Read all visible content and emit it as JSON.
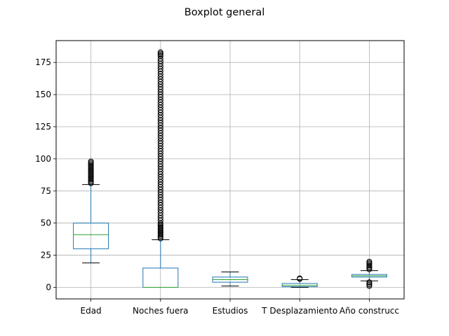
{
  "chart_data": {
    "type": "boxplot",
    "title": "Boxplot general",
    "xlabel": "",
    "ylabel": "",
    "ylim": [
      -9,
      192
    ],
    "yticks": [
      0,
      25,
      50,
      75,
      100,
      125,
      150,
      175
    ],
    "grid": true,
    "colors": {
      "box": "#1f77b4",
      "median": "#2ca02c",
      "whisker": "#000000",
      "flier": "#000000",
      "grid": "#b0b0b0"
    },
    "categories": [
      "Edad",
      "Noches fuera",
      "Estudios",
      "T Desplazamiento",
      "Año construcc"
    ],
    "boxes": [
      {
        "name": "Edad",
        "whislo": 19,
        "q1": 30,
        "med": 41,
        "q3": 50,
        "whishi": 80,
        "fliers": [
          81,
          82,
          83,
          84,
          85,
          86,
          87,
          88,
          89,
          90,
          91,
          92,
          93,
          94,
          95,
          96,
          97,
          98
        ]
      },
      {
        "name": "Noches fuera",
        "whislo": 0,
        "q1": 0,
        "med": 0,
        "q3": 15,
        "whishi": 37,
        "fliers": [
          38,
          39,
          40,
          41,
          42,
          43,
          44,
          45,
          46,
          47,
          48,
          49,
          50,
          52,
          54,
          56,
          58,
          60,
          62,
          64,
          66,
          68,
          70,
          72,
          74,
          76,
          78,
          80,
          82,
          84,
          86,
          88,
          90,
          92,
          94,
          96,
          98,
          100,
          102,
          104,
          106,
          108,
          110,
          112,
          114,
          116,
          118,
          120,
          122,
          124,
          126,
          128,
          130,
          132,
          134,
          136,
          138,
          140,
          142,
          144,
          146,
          148,
          150,
          152,
          154,
          156,
          158,
          160,
          162,
          164,
          166,
          168,
          170,
          172,
          174,
          176,
          178,
          180,
          181,
          182,
          183
        ]
      },
      {
        "name": "Estudios",
        "whislo": 1,
        "q1": 4,
        "med": 6,
        "q3": 8,
        "whishi": 12,
        "fliers": []
      },
      {
        "name": "T Desplazamiento",
        "whislo": 0,
        "q1": 0.5,
        "med": 1.5,
        "q3": 3,
        "whishi": 6,
        "fliers": [
          6.5,
          7
        ]
      },
      {
        "name": "Año construcc",
        "whislo": 5,
        "q1": 8,
        "med": 9,
        "q3": 10,
        "whishi": 13,
        "fliers": [
          1,
          2,
          3,
          4,
          14,
          15,
          16,
          17,
          18,
          19,
          20
        ]
      }
    ]
  }
}
